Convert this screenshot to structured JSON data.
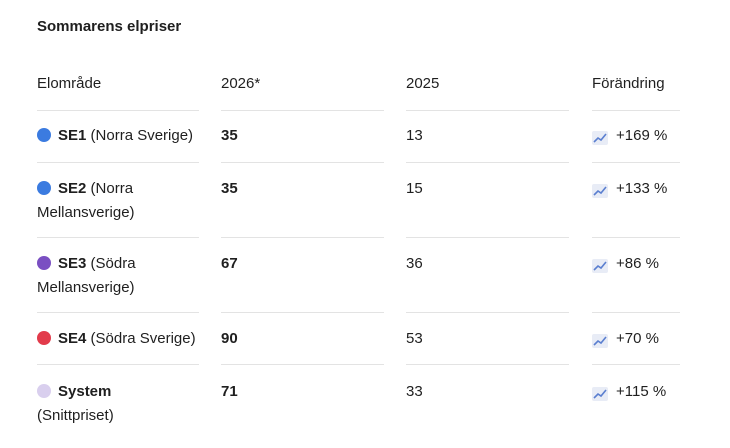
{
  "title": "Sommarens elpriser",
  "headers": {
    "region": "Elområde",
    "y2026": "2026*",
    "y2025": "2025",
    "change": "Förändring"
  },
  "rows": [
    {
      "code": "SE1",
      "name": "(Norra Sverige)",
      "v2026": "35",
      "v2025": "13",
      "change": "+169 %",
      "dot_color": "#3b7be0"
    },
    {
      "code": "SE2",
      "name": "(Norra Mellansverige)",
      "v2026": "35",
      "v2025": "15",
      "change": "+133 %",
      "dot_color": "#3b7be0"
    },
    {
      "code": "SE3",
      "name": "(Södra Mellansverige)",
      "v2026": "67",
      "v2025": "36",
      "change": "+86 %",
      "dot_color": "#7a4fc2"
    },
    {
      "code": "SE4",
      "name": "(Södra Sverige)",
      "v2026": "90",
      "v2025": "53",
      "change": "+70 %",
      "dot_color": "#e23b4b"
    },
    {
      "code": "System",
      "name": "(Snittpriset)",
      "v2026": "71",
      "v2025": "33",
      "change": "+115 %",
      "dot_color": "#d9cfee"
    }
  ],
  "icons": {
    "row_dot": "circle-icon",
    "change_icon": "chart-increasing-icon"
  }
}
